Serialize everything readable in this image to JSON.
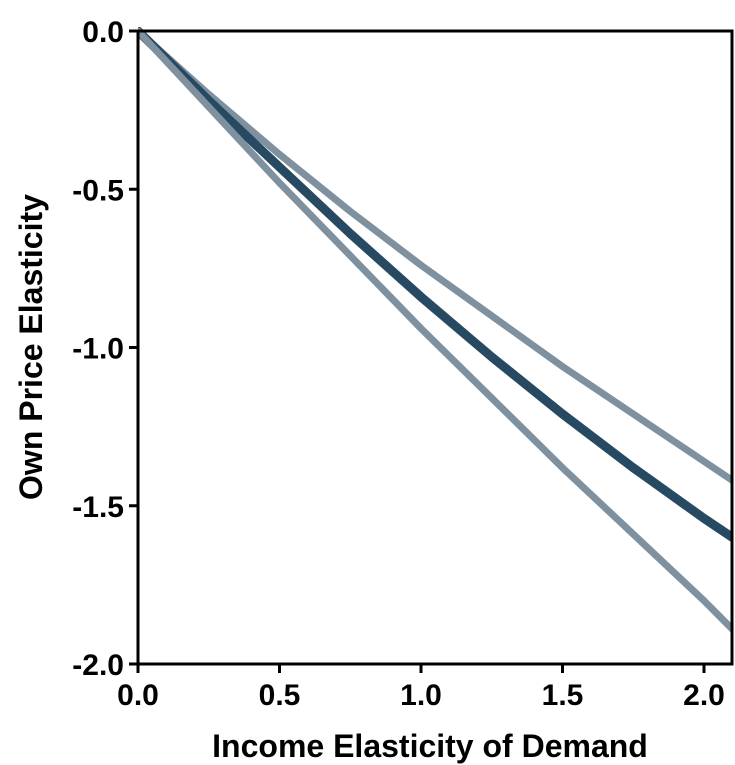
{
  "chart_data": {
    "type": "line",
    "title": "",
    "xlabel": "Income Elasticity of Demand",
    "ylabel": "Own Price Elasticity",
    "xlim": [
      0.0,
      2.1
    ],
    "ylim": [
      -2.0,
      0.0
    ],
    "xticks": [
      0.0,
      0.5,
      1.0,
      1.5,
      2.0
    ],
    "xtick_labels": [
      "0.0",
      "0.5",
      "1.0",
      "1.5",
      "2.0"
    ],
    "yticks": [
      0.0,
      -0.5,
      -1.0,
      -1.5,
      -2.0
    ],
    "ytick_labels": [
      "0.0",
      "-0.5",
      "-1.0",
      "-1.5",
      "-2.0"
    ],
    "grid": false,
    "legend": "none",
    "series": [
      {
        "role": "upper-bound",
        "color": "#7f919f",
        "x": [
          0.0,
          0.25,
          0.5,
          0.75,
          1.0,
          1.25,
          1.5,
          1.75,
          2.0,
          2.1
        ],
        "y": [
          0.0,
          -0.2,
          -0.39,
          -0.57,
          -0.74,
          -0.9,
          -1.06,
          -1.21,
          -1.36,
          -1.42
        ]
      },
      {
        "role": "estimate",
        "color": "#274a62",
        "x": [
          0.0,
          0.25,
          0.5,
          0.75,
          1.0,
          1.25,
          1.5,
          1.75,
          2.0,
          2.1
        ],
        "y": [
          0.0,
          -0.22,
          -0.43,
          -0.64,
          -0.84,
          -1.03,
          -1.21,
          -1.38,
          -1.54,
          -1.6
        ]
      },
      {
        "role": "lower-bound",
        "color": "#7f919f",
        "x": [
          0.0,
          0.25,
          0.5,
          0.75,
          1.0,
          1.25,
          1.5,
          1.75,
          2.0,
          2.1
        ],
        "y": [
          0.0,
          -0.24,
          -0.48,
          -0.71,
          -0.94,
          -1.16,
          -1.38,
          -1.59,
          -1.8,
          -1.89
        ]
      }
    ]
  }
}
